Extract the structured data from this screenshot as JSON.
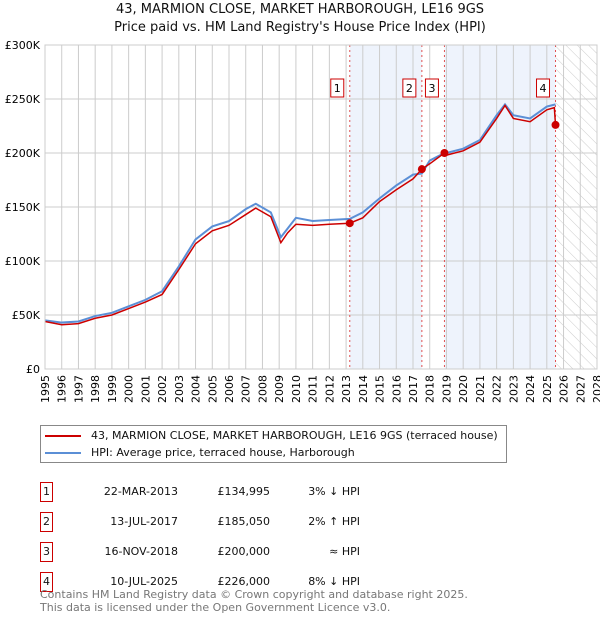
{
  "chart_data": {
    "type": "line",
    "title": "43, MARMION CLOSE, MARKET HARBOROUGH, LE16 9GS",
    "subtitle": "Price paid vs. HM Land Registry's House Price Index (HPI)",
    "xlim": [
      1995,
      2028
    ],
    "ylim": [
      0,
      300000
    ],
    "y_ticks": [
      {
        "v": 0,
        "label": "£0"
      },
      {
        "v": 50000,
        "label": "£50K"
      },
      {
        "v": 100000,
        "label": "£100K"
      },
      {
        "v": 150000,
        "label": "£150K"
      },
      {
        "v": 200000,
        "label": "£200K"
      },
      {
        "v": 250000,
        "label": "£250K"
      },
      {
        "v": 300000,
        "label": "£300K"
      }
    ],
    "x_ticks": [
      "1995",
      "1996",
      "1997",
      "1998",
      "1999",
      "2000",
      "2001",
      "2002",
      "2003",
      "2004",
      "2005",
      "2006",
      "2007",
      "2008",
      "2009",
      "2010",
      "2011",
      "2012",
      "2013",
      "2014",
      "2015",
      "2016",
      "2017",
      "2018",
      "2019",
      "2020",
      "2021",
      "2022",
      "2023",
      "2024",
      "2025",
      "2026",
      "2027",
      "2028"
    ],
    "grid": true,
    "forecast_start": 2025.52,
    "series": [
      {
        "name": "43, MARMION CLOSE, MARKET HARBOROUGH, LE16 9GS (terraced house)",
        "color": "#cc0000",
        "x": [
          1995,
          1996,
          1997,
          1998,
          1999,
          2000,
          2001,
          2002,
          2003,
          2004,
          2005,
          2006,
          2007,
          2007.6,
          2008.5,
          2009.1,
          2009.5,
          2010,
          2011,
          2012,
          2013.22,
          2014,
          2015,
          2016,
          2017,
          2017.53,
          2018,
          2018.88,
          2019,
          2020,
          2021,
          2022,
          2022.5,
          2023,
          2024,
          2025,
          2025.45,
          2025.52
        ],
        "y": [
          44000,
          41000,
          42000,
          47000,
          50000,
          56000,
          62000,
          69000,
          92000,
          116000,
          128000,
          133000,
          143000,
          149000,
          141000,
          117000,
          126000,
          134000,
          133000,
          134000,
          134995,
          140000,
          155000,
          166000,
          176000,
          185050,
          190000,
          200000,
          198000,
          202000,
          210000,
          232000,
          244000,
          232000,
          229000,
          240000,
          242000,
          226000
        ]
      },
      {
        "name": "HPI: Average price, terraced house, Harborough",
        "color": "#5b8fd6",
        "x": [
          1995,
          1996,
          1997,
          1998,
          1999,
          2000,
          2001,
          2002,
          2003,
          2004,
          2005,
          2006,
          2007,
          2007.6,
          2008.5,
          2009.1,
          2009.5,
          2010,
          2011,
          2012,
          2013.22,
          2014,
          2015,
          2016,
          2017,
          2017.53,
          2018,
          2018.88,
          2019,
          2020,
          2021,
          2022,
          2022.5,
          2023,
          2024,
          2025,
          2025.52
        ],
        "y": [
          45000,
          43000,
          44000,
          49000,
          52000,
          58000,
          64000,
          72000,
          95000,
          120000,
          132000,
          137000,
          148000,
          153000,
          145000,
          122000,
          130000,
          140000,
          137000,
          138000,
          139000,
          145000,
          158000,
          170000,
          180000,
          181000,
          193000,
          200000,
          200000,
          204000,
          212000,
          235000,
          245000,
          235000,
          232000,
          243000,
          245000
        ]
      }
    ],
    "sales": [
      {
        "n": "1",
        "x": 2013.22,
        "date": "22-MAR-2013",
        "price": 134995,
        "price_label": "£134,995",
        "hpi": "3% ↓ HPI"
      },
      {
        "n": "2",
        "x": 2017.53,
        "date": "13-JUL-2017",
        "price": 185050,
        "price_label": "£185,050",
        "hpi": "2% ↑ HPI"
      },
      {
        "n": "3",
        "x": 2018.88,
        "date": "16-NOV-2018",
        "price": 200000,
        "price_label": "£200,000",
        "hpi": "≈ HPI"
      },
      {
        "n": "4",
        "x": 2025.52,
        "date": "10-JUL-2025",
        "price": 226000,
        "price_label": "£226,000",
        "hpi": "8% ↓ HPI"
      }
    ]
  },
  "footer": {
    "line1": "Contains HM Land Registry data © Crown copyright and database right 2025.",
    "line2": "This data is licensed under the Open Government Licence v3.0."
  }
}
